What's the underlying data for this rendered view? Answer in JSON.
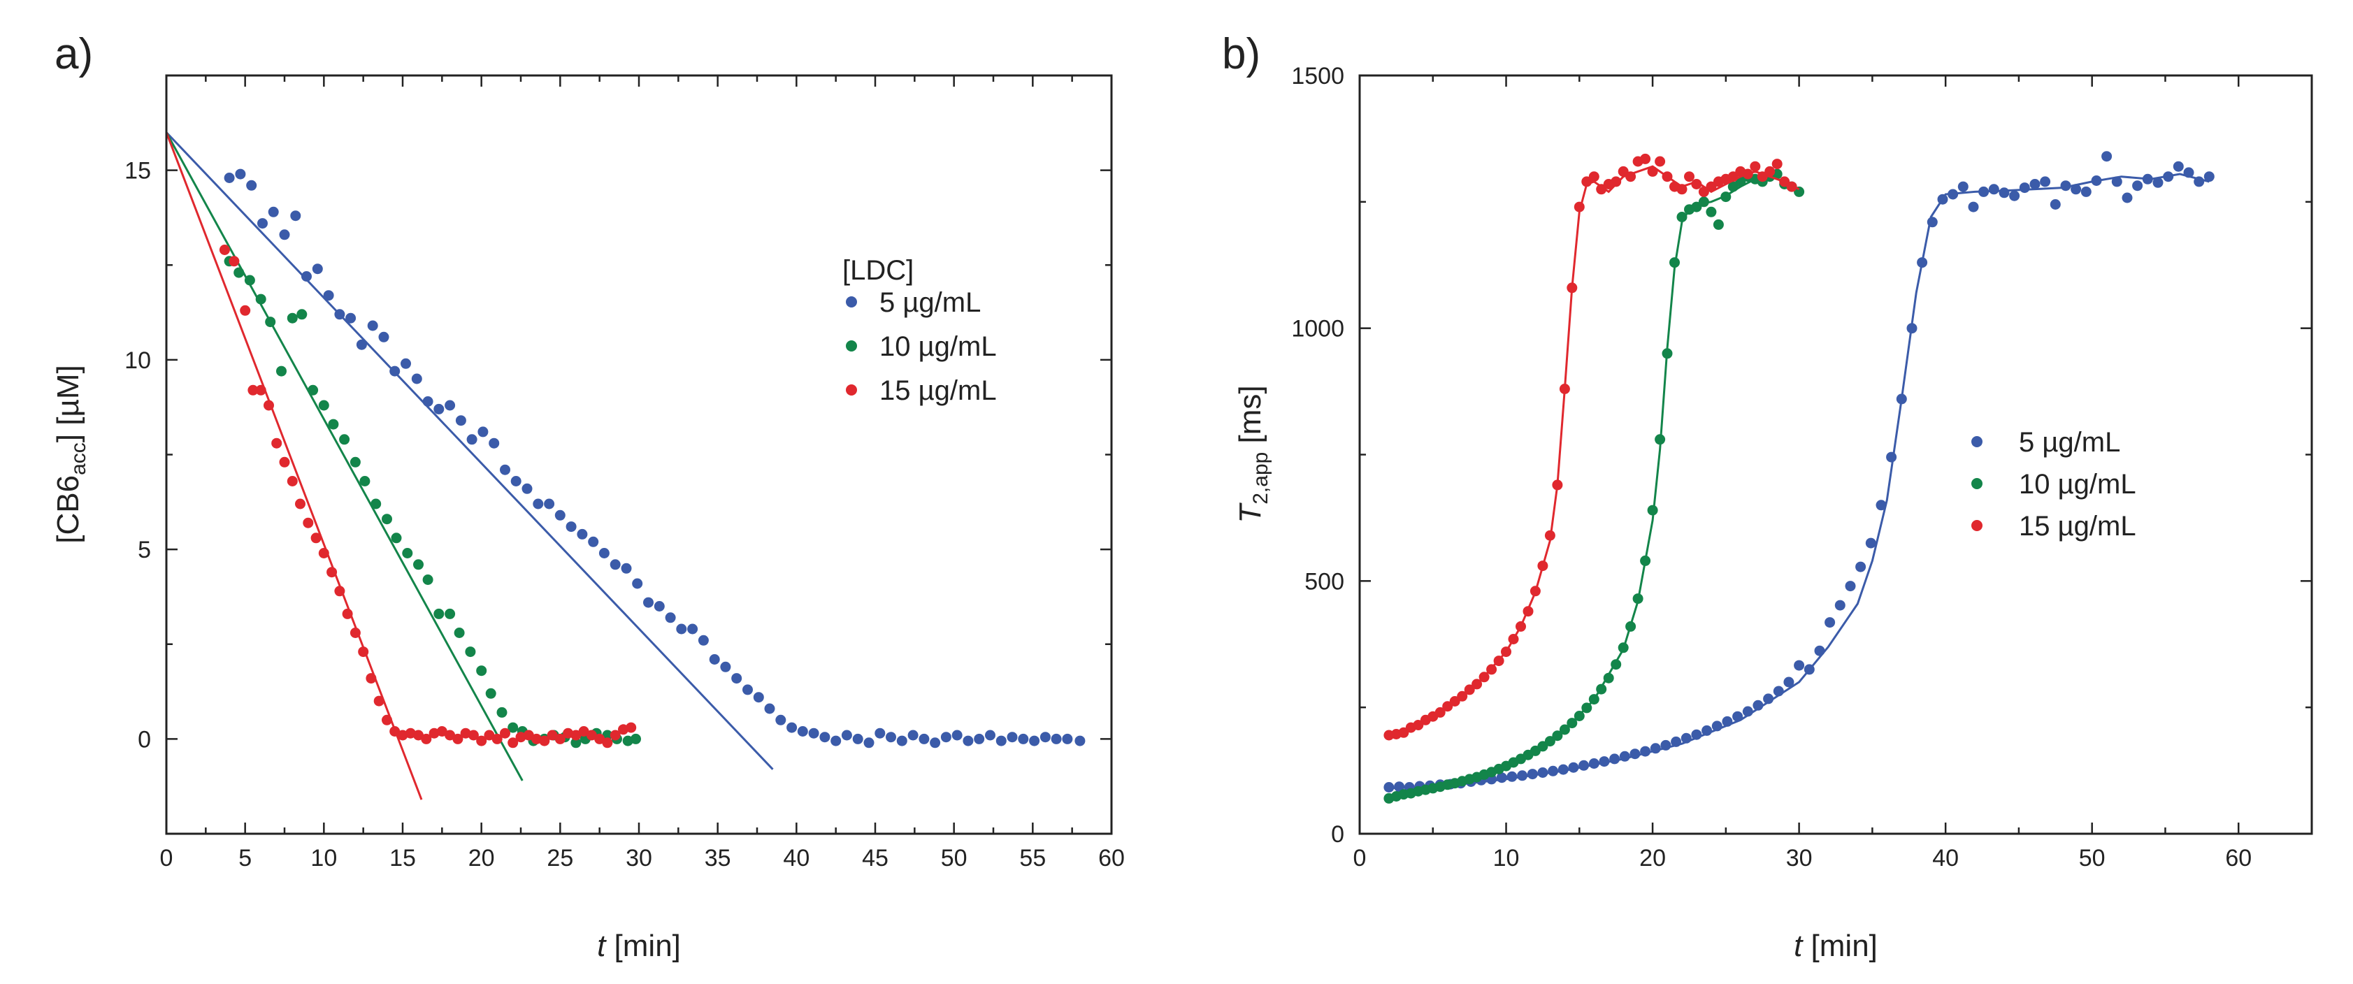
{
  "chart_data": [
    {
      "type": "scatter",
      "panel_label": "a)",
      "title": "",
      "xlabel": {
        "italic": "t",
        "rest": " [min]"
      },
      "ylabel": {
        "pre": "[CB6",
        "sub": "acc",
        "post": "] [µM]"
      },
      "xlim": [
        0,
        60
      ],
      "ylim": [
        -2.5,
        17.5
      ],
      "xticks": [
        0,
        5,
        10,
        15,
        20,
        25,
        30,
        35,
        40,
        45,
        50,
        55,
        60
      ],
      "yticks": [
        0,
        5,
        10,
        15
      ],
      "legend_title": "[LDC]",
      "legend_position": "upper-right",
      "series": [
        {
          "name": "5 µg/mL",
          "color": "#3b5ba9",
          "x": [
            4,
            4.7,
            5.4,
            6.1,
            6.8,
            7.5,
            8.2,
            8.9,
            9.6,
            10.3,
            11,
            11.7,
            12.4,
            13.1,
            13.8,
            14.5,
            15.2,
            15.9,
            16.6,
            17.3,
            18,
            18.7,
            19.4,
            20.1,
            20.8,
            21.5,
            22.2,
            22.9,
            23.6,
            24.3,
            25,
            25.7,
            26.4,
            27.1,
            27.8,
            28.5,
            29.2,
            29.9,
            30.6,
            31.3,
            32,
            32.7,
            33.4,
            34.1,
            34.8,
            35.5,
            36.2,
            36.9,
            37.6,
            38.3,
            39,
            39.7,
            40.4,
            41.1,
            41.8,
            42.5,
            43.2,
            43.9,
            44.6,
            45.3,
            46,
            46.7,
            47.4,
            48.1,
            48.8,
            49.5,
            50.2,
            50.9,
            51.6,
            52.3,
            53,
            53.7,
            54.4,
            55.1,
            55.8,
            56.5,
            57.2,
            58
          ],
          "y": [
            14.8,
            14.9,
            14.6,
            13.6,
            13.9,
            13.3,
            13.8,
            12.2,
            12.4,
            11.7,
            11.2,
            11.1,
            10.4,
            10.9,
            10.6,
            9.7,
            9.9,
            9.5,
            8.9,
            8.7,
            8.8,
            8.4,
            7.9,
            8.1,
            7.8,
            7.1,
            6.8,
            6.6,
            6.2,
            6.2,
            5.9,
            5.6,
            5.4,
            5.2,
            4.9,
            4.6,
            4.5,
            4.1,
            3.6,
            3.5,
            3.2,
            2.9,
            2.9,
            2.6,
            2.1,
            1.9,
            1.6,
            1.3,
            1.1,
            0.8,
            0.5,
            0.3,
            0.2,
            0.15,
            0.05,
            -0.05,
            0.1,
            0.0,
            -0.1,
            0.15,
            0.05,
            -0.05,
            0.1,
            0.0,
            -0.1,
            0.05,
            0.1,
            -0.05,
            0.0,
            0.1,
            -0.05,
            0.05,
            0.0,
            -0.05,
            0.05,
            0.0,
            0.0,
            -0.05
          ],
          "fit": {
            "x": [
              0,
              38.5
            ],
            "y": [
              16,
              -0.8
            ]
          }
        },
        {
          "name": "10 µg/mL",
          "color": "#13854a",
          "x": [
            4,
            4.6,
            5.3,
            6,
            6.6,
            7.3,
            8,
            8.6,
            9.3,
            10,
            10.6,
            11.3,
            12,
            12.6,
            13.3,
            14,
            14.6,
            15.3,
            16,
            16.6,
            17.3,
            18,
            18.6,
            19.3,
            20,
            20.6,
            21.3,
            22,
            22.6,
            23.3,
            24,
            24.6,
            25.3,
            26,
            26.6,
            27.3,
            28,
            28.6,
            29.3,
            29.8
          ],
          "y": [
            12.6,
            12.3,
            12.1,
            11.6,
            11.0,
            9.7,
            11.1,
            11.2,
            9.2,
            8.8,
            8.3,
            7.9,
            7.3,
            6.8,
            6.2,
            5.8,
            5.3,
            4.9,
            4.6,
            4.2,
            3.3,
            3.3,
            2.8,
            2.3,
            1.8,
            1.2,
            0.7,
            0.3,
            0.2,
            -0.05,
            0.0,
            0.1,
            0.05,
            -0.1,
            0.0,
            0.15,
            0.1,
            0.0,
            -0.05,
            0.0
          ],
          "fit": {
            "x": [
              0,
              22.6
            ],
            "y": [
              16,
              -1.1
            ]
          }
        },
        {
          "name": "15 µg/mL",
          "color": "#e0282e",
          "x": [
            3.7,
            4.3,
            5,
            5.5,
            6,
            6.5,
            7,
            7.5,
            8,
            8.5,
            9,
            9.5,
            10,
            10.5,
            11,
            11.5,
            12,
            12.5,
            13,
            13.5,
            14,
            14.5,
            15,
            15.5,
            16,
            16.5,
            17,
            17.5,
            18,
            18.5,
            19,
            19.5,
            20,
            20.5,
            21,
            21.5,
            22,
            22.5,
            23,
            23.5,
            24,
            24.5,
            25,
            25.5,
            26,
            26.5,
            27,
            27.5,
            28,
            28.5,
            29,
            29.5
          ],
          "y": [
            12.9,
            12.6,
            11.3,
            9.2,
            9.2,
            8.8,
            7.8,
            7.3,
            6.8,
            6.2,
            5.7,
            5.3,
            4.9,
            4.4,
            3.9,
            3.3,
            2.8,
            2.3,
            1.6,
            1.0,
            0.5,
            0.2,
            0.1,
            0.15,
            0.1,
            0.0,
            0.15,
            0.2,
            0.1,
            0.0,
            0.15,
            0.1,
            -0.05,
            0.1,
            0.0,
            0.15,
            -0.1,
            0.05,
            0.1,
            0.0,
            -0.05,
            0.1,
            0.0,
            0.15,
            0.1,
            0.2,
            0.1,
            0.0,
            -0.1,
            0.1,
            0.25,
            0.3
          ],
          "fit": {
            "x": [
              0,
              16.2
            ],
            "y": [
              16,
              -1.6
            ]
          }
        }
      ]
    },
    {
      "type": "scatter",
      "panel_label": "b)",
      "title": "",
      "xlabel": {
        "italic": "t",
        "rest": " [min]"
      },
      "ylabel": {
        "italic": "T",
        "sub": "2,app",
        "post": " [ms]"
      },
      "xlim": [
        0,
        65
      ],
      "ylim": [
        0,
        1500
      ],
      "xticks": [
        0,
        10,
        20,
        30,
        40,
        50,
        60
      ],
      "yticks": [
        0,
        500,
        1000,
        1500
      ],
      "legend_title": "",
      "legend_position": "center-right",
      "series": [
        {
          "name": "5 µg/mL",
          "color": "#3b5ba9",
          "x": [
            2,
            2.7,
            3.4,
            4.1,
            4.8,
            5.5,
            6.2,
            6.9,
            7.6,
            8.3,
            9,
            9.7,
            10.4,
            11.1,
            11.8,
            12.5,
            13.2,
            13.9,
            14.6,
            15.3,
            16,
            16.7,
            17.4,
            18.1,
            18.8,
            19.5,
            20.2,
            20.9,
            21.6,
            22.3,
            23,
            23.7,
            24.4,
            25.1,
            25.8,
            26.5,
            27.2,
            27.9,
            28.6,
            29.3,
            30,
            30.7,
            31.4,
            32.1,
            32.8,
            33.5,
            34.2,
            34.9,
            35.6,
            36.3,
            37,
            37.7,
            38.4,
            39.1,
            39.8,
            40.5,
            41.2,
            41.9,
            42.6,
            43.3,
            44,
            44.7,
            45.4,
            46.1,
            46.8,
            47.5,
            48.2,
            48.9,
            49.6,
            50.3,
            51,
            51.7,
            52.4,
            53.1,
            53.8,
            54.5,
            55.2,
            55.9,
            56.6,
            57.3,
            58
          ],
          "y": [
            92,
            93,
            92,
            94,
            95,
            97,
            98,
            100,
            103,
            106,
            108,
            111,
            113,
            115,
            118,
            121,
            124,
            127,
            131,
            135,
            139,
            143,
            148,
            153,
            158,
            163,
            169,
            175,
            182,
            189,
            196,
            204,
            213,
            222,
            232,
            242,
            254,
            267,
            282,
            300,
            333,
            325,
            362,
            418,
            452,
            490,
            528,
            575,
            650,
            745,
            860,
            1000,
            1130,
            1210,
            1255,
            1265,
            1280,
            1240,
            1270,
            1275,
            1268,
            1262,
            1278,
            1285,
            1290,
            1245,
            1282,
            1275,
            1270,
            1292,
            1340,
            1290,
            1258,
            1282,
            1295,
            1288,
            1300,
            1320,
            1308,
            1290,
            1300
          ],
          "fit_x": [
            2,
            6,
            10,
            14,
            18,
            22,
            26,
            30,
            32,
            34,
            35,
            36,
            37,
            38,
            39,
            40,
            42,
            44,
            46,
            48,
            50,
            52,
            54,
            56,
            58
          ],
          "fit_y": [
            90,
            95,
            108,
            125,
            148,
            178,
            225,
            300,
            370,
            455,
            540,
            660,
            860,
            1070,
            1220,
            1265,
            1270,
            1272,
            1275,
            1278,
            1290,
            1300,
            1295,
            1305,
            1290
          ]
        },
        {
          "name": "10 µg/mL",
          "color": "#13854a",
          "x": [
            2,
            2.5,
            3,
            3.5,
            4,
            4.5,
            5,
            5.5,
            6,
            6.5,
            7,
            7.5,
            8,
            8.5,
            9,
            9.5,
            10,
            10.5,
            11,
            11.5,
            12,
            12.5,
            13,
            13.5,
            14,
            14.5,
            15,
            15.5,
            16,
            16.5,
            17,
            17.5,
            18,
            18.5,
            19,
            19.5,
            20,
            20.5,
            21,
            21.5,
            22,
            22.5,
            23,
            23.5,
            24,
            24.5,
            25,
            25.5,
            26,
            26.5,
            27,
            27.5,
            28,
            28.5,
            29,
            29.5,
            30
          ],
          "y": [
            70,
            74,
            78,
            80,
            84,
            87,
            90,
            93,
            97,
            100,
            104,
            108,
            112,
            117,
            122,
            128,
            134,
            141,
            148,
            156,
            164,
            173,
            183,
            194,
            206,
            219,
            233,
            249,
            266,
            286,
            308,
            335,
            368,
            410,
            465,
            540,
            640,
            780,
            950,
            1130,
            1220,
            1235,
            1240,
            1250,
            1230,
            1205,
            1260,
            1280,
            1290,
            1300,
            1295,
            1290,
            1300,
            1305,
            1285,
            1280,
            1270
          ],
          "fit_x": [
            2,
            6,
            10,
            14,
            16,
            18,
            19,
            20,
            20.5,
            21,
            21.5,
            22,
            22.5,
            23,
            24,
            25,
            26,
            27,
            28,
            29,
            30
          ],
          "fit_y": [
            72,
            95,
            132,
            205,
            265,
            365,
            460,
            620,
            760,
            960,
            1120,
            1210,
            1235,
            1245,
            1250,
            1262,
            1280,
            1295,
            1300,
            1290,
            1268
          ]
        },
        {
          "name": "15 µg/mL",
          "color": "#e0282e",
          "x": [
            2,
            2.5,
            3,
            3.5,
            4,
            4.5,
            5,
            5.5,
            6,
            6.5,
            7,
            7.5,
            8,
            8.5,
            9,
            9.5,
            10,
            10.5,
            11,
            11.5,
            12,
            12.5,
            13,
            13.5,
            14,
            14.5,
            15,
            15.5,
            16,
            16.5,
            17,
            17.5,
            18,
            18.5,
            19,
            19.5,
            20,
            20.5,
            21,
            21.5,
            22,
            22.5,
            23,
            23.5,
            24,
            24.5,
            25,
            25.5,
            26,
            26.5,
            27,
            27.5,
            28,
            28.5,
            29,
            29.5
          ],
          "y": [
            195,
            197,
            200,
            210,
            215,
            225,
            232,
            240,
            252,
            262,
            272,
            285,
            296,
            310,
            325,
            342,
            360,
            385,
            410,
            440,
            480,
            530,
            590,
            690,
            880,
            1080,
            1240,
            1290,
            1300,
            1275,
            1285,
            1290,
            1310,
            1300,
            1330,
            1335,
            1310,
            1330,
            1300,
            1280,
            1275,
            1300,
            1285,
            1270,
            1280,
            1290,
            1295,
            1300,
            1310,
            1305,
            1320,
            1300,
            1310,
            1325,
            1290,
            1280
          ],
          "fit_x": [
            2,
            4,
            6,
            8,
            10,
            11,
            12,
            13,
            13.5,
            14,
            14.5,
            15,
            15.5,
            16,
            17,
            18,
            19,
            20,
            21,
            22,
            23,
            24,
            25,
            26,
            27,
            28,
            29,
            30
          ],
          "fit_y": [
            195,
            215,
            248,
            295,
            360,
            410,
            478,
            580,
            690,
            880,
            1080,
            1230,
            1285,
            1290,
            1270,
            1300,
            1310,
            1320,
            1300,
            1280,
            1290,
            1270,
            1285,
            1300,
            1310,
            1300,
            1290,
            1275
          ]
        }
      ]
    }
  ]
}
